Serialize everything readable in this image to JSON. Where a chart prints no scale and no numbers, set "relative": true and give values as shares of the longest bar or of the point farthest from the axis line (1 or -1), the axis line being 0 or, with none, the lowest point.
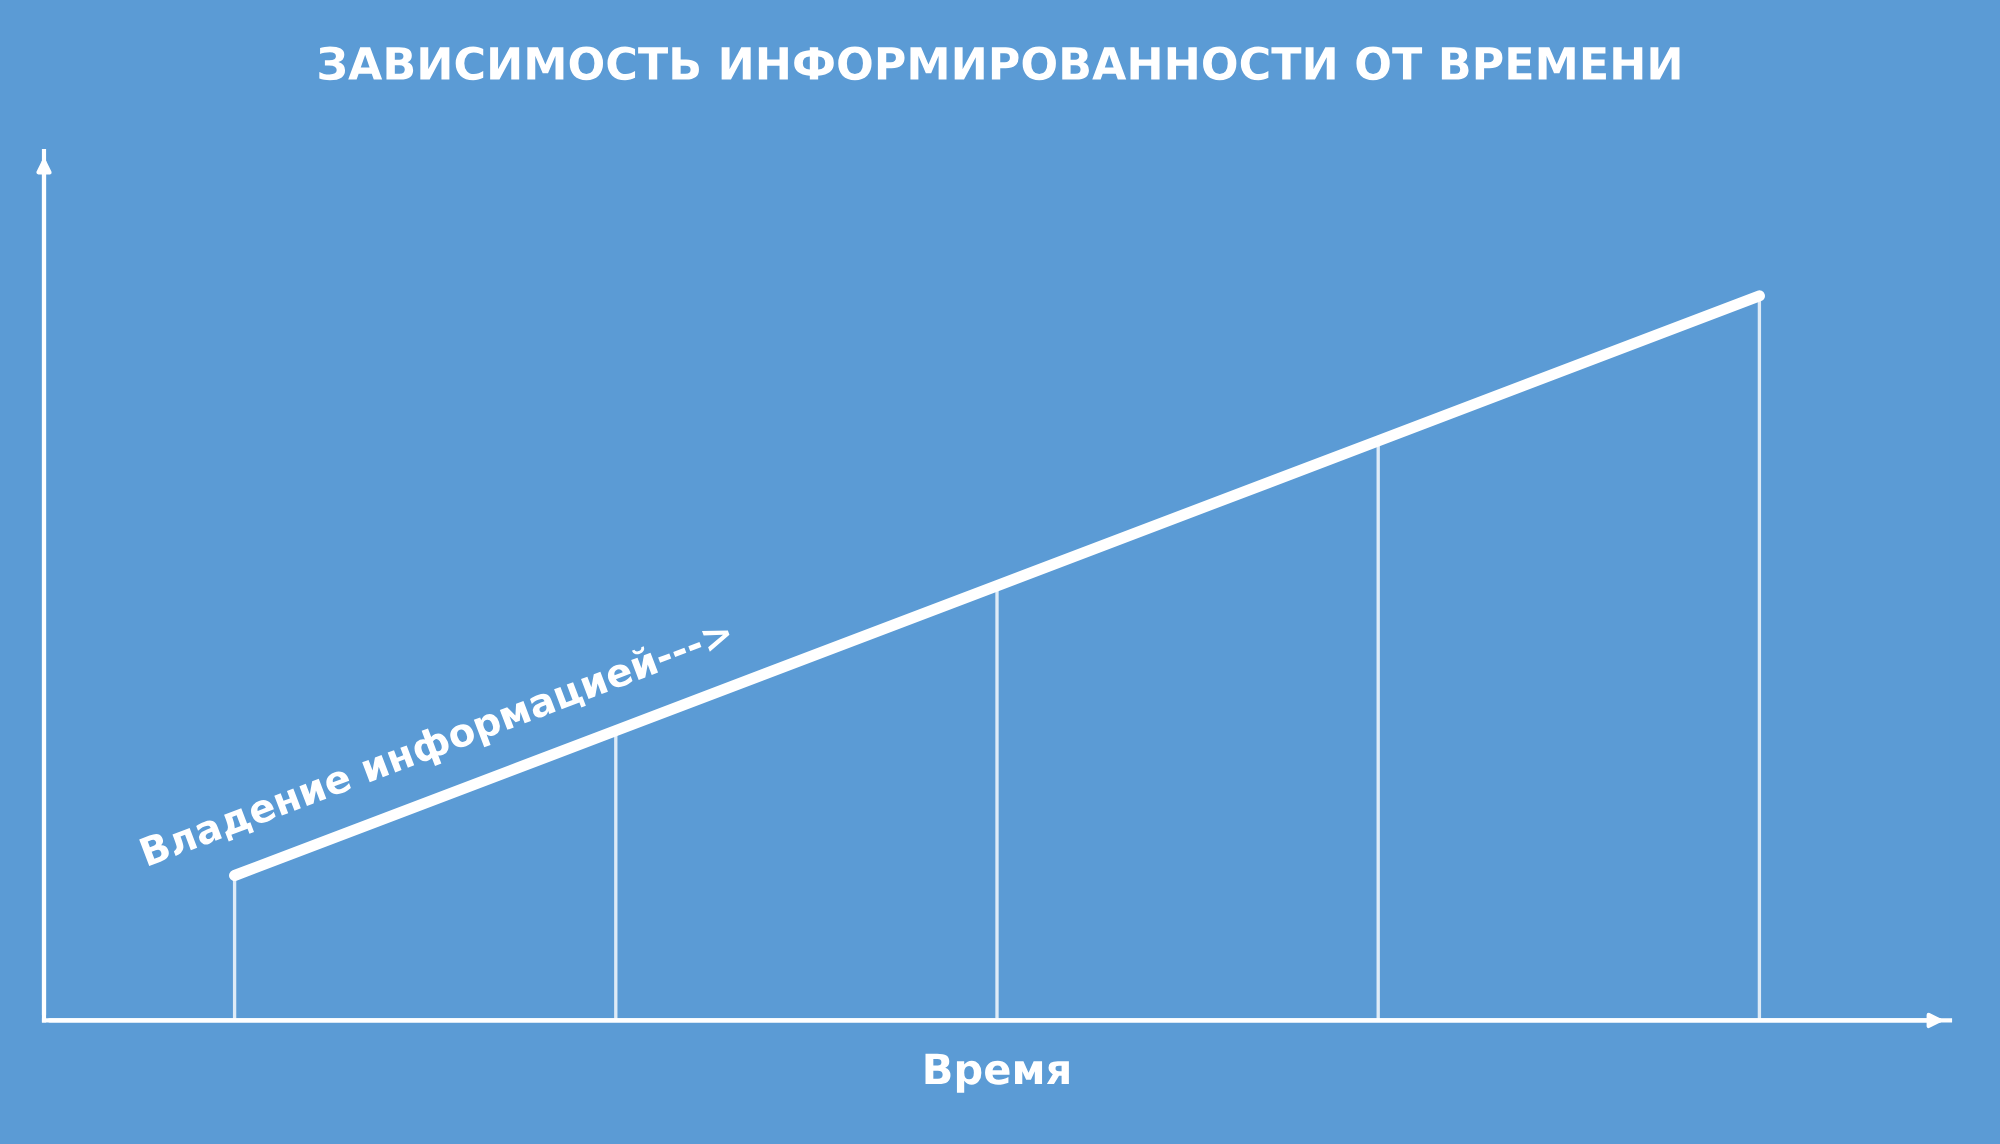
{
  "chart_data": {
    "type": "line",
    "title": "ЗАВИСИМОСТЬ ИНФОРМИРОВАННОСТИ ОТ ВРЕМЕНИ",
    "xlabel": "Время",
    "relative": true,
    "categories": [
      null,
      null,
      null,
      null,
      null
    ],
    "grid": false,
    "marker": "none",
    "line_style": "solid",
    "series": [
      {
        "name": "Владение информацией--->",
        "color": "#ffffff",
        "values": [
          0.2,
          0.4,
          0.6,
          0.8,
          1.0
        ]
      }
    ]
  }
}
